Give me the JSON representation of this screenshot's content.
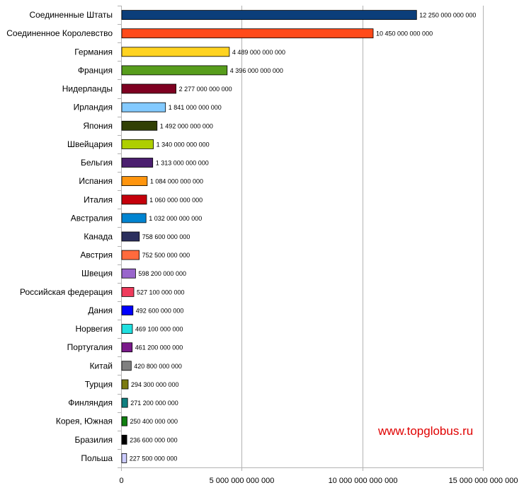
{
  "chart_data": {
    "type": "bar",
    "orientation": "horizontal",
    "categories": [
      "Соединенные Штаты",
      "Соединенное Королевство",
      "Германия",
      "Франция",
      "Нидерланды",
      "Ирландия",
      "Япония",
      "Швейцария",
      "Бельгия",
      "Испания",
      "Италия",
      "Австралия",
      "Канада",
      "Австрия",
      "Швеция",
      "Российская федерация",
      "Дания",
      "Норвегия",
      "Португалия",
      "Китай",
      "Турция",
      "Финляндия",
      "Корея, Южная",
      "Бразилия",
      "Польша"
    ],
    "values": [
      12250000000000,
      10450000000000,
      4489000000000,
      4396000000000,
      2277000000000,
      1841000000000,
      1492000000000,
      1340000000000,
      1313000000000,
      1084000000000,
      1060000000000,
      1032000000000,
      758600000000,
      752500000000,
      598200000000,
      527100000000,
      492600000000,
      469100000000,
      461200000000,
      420800000000,
      294300000000,
      271200000000,
      250400000000,
      236600000000,
      227500000000
    ],
    "value_labels": [
      "12 250 000 000 000",
      "10 450 000 000 000",
      "4 489 000 000 000",
      "4 396 000 000 000",
      "2 277 000 000 000",
      "1 841 000 000 000",
      "1 492 000 000 000",
      "1 340 000 000 000",
      "1 313 000 000 000",
      "1 084 000 000 000",
      "1 060 000 000 000",
      "1 032 000 000 000",
      "758 600 000 000",
      "752 500 000 000",
      "598 200 000 000",
      "527 100 000 000",
      "492 600 000 000",
      "469 100 000 000",
      "461 200 000 000",
      "420 800 000 000",
      "294 300 000 000",
      "271 200 000 000",
      "250 400 000 000",
      "236 600 000 000",
      "227 500 000 000"
    ],
    "colors": [
      "#0b3e7a",
      "#ff4a1a",
      "#ffd320",
      "#579d1c",
      "#7e0021",
      "#83caff",
      "#314004",
      "#aecf00",
      "#4b1f6f",
      "#ff950e",
      "#c5000b",
      "#0084d1",
      "#2b2f5e",
      "#ff6a3d",
      "#9966cc",
      "#ef3b5c",
      "#0000ff",
      "#20e0e0",
      "#7a1a8a",
      "#808080",
      "#7a7a10",
      "#108080",
      "#108010",
      "#000000",
      "#ccccff"
    ],
    "x_ticks": [
      0,
      5000000000000,
      10000000000000,
      15000000000000
    ],
    "x_tick_labels": [
      "0",
      "5 000 000 000 000",
      "10 000 000 000 000",
      "15 000 000 000 000"
    ],
    "xlim": [
      0,
      15000000000000
    ],
    "grid": true,
    "title": "",
    "xlabel": "",
    "ylabel": ""
  },
  "watermark": "www.topglobus.ru"
}
